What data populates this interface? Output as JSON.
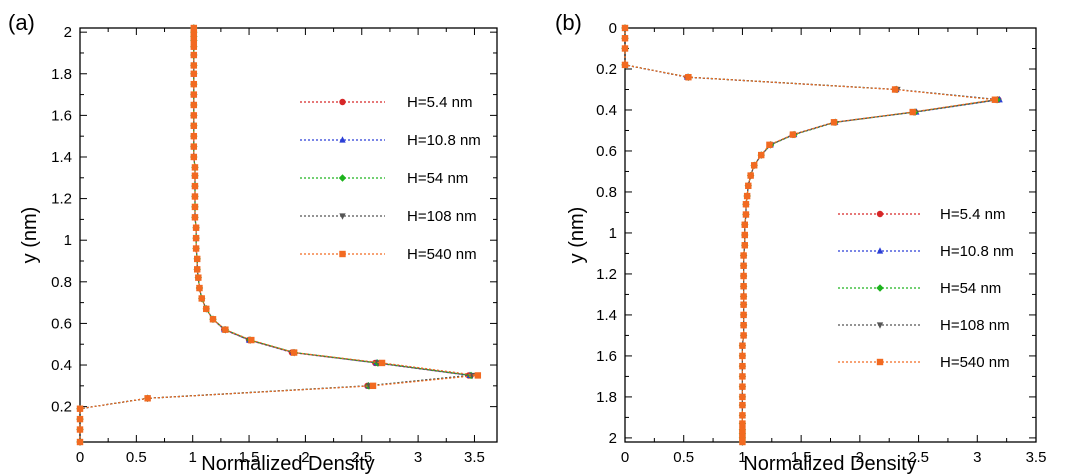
{
  "chart_data": [
    {
      "type": "line",
      "panel_label": "(a)",
      "xlabel": "Normalized Density",
      "ylabel": "y (nm)",
      "xlim": [
        0,
        3.7
      ],
      "ylim": [
        0.03,
        2.02
      ],
      "y_inverted": false,
      "xticks": [
        0,
        0.5,
        1,
        1.5,
        2,
        2.5,
        3,
        3.5
      ],
      "yticks": [
        0.2,
        0.4,
        0.6,
        0.8,
        1,
        1.2,
        1.4,
        1.6,
        1.8,
        2
      ],
      "grid": false,
      "legend_position": "right",
      "series": [
        {
          "name": "H=5.4 nm",
          "color": "#d62728",
          "marker": "circle",
          "x": [
            0,
            0,
            0,
            0,
            0.6,
            2.55,
            3.45,
            2.62,
            1.88,
            1.5,
            1.28,
            1.18,
            1.12,
            1.08,
            1.06,
            1.05,
            1.04,
            1.04,
            1.03,
            1.03,
            1.03,
            1.02,
            1.02,
            1.02,
            1.02,
            1.02,
            1.02,
            1.01,
            1.01,
            1.01,
            1.01,
            1.01,
            1.01,
            1.01,
            1.01,
            1.01,
            1.01,
            1.01,
            1.01,
            1.01,
            1.01,
            1.01,
            1.01
          ],
          "y": [
            0.03,
            0.09,
            0.14,
            0.19,
            0.24,
            0.3,
            0.35,
            0.41,
            0.46,
            0.52,
            0.57,
            0.62,
            0.67,
            0.72,
            0.77,
            0.82,
            0.86,
            0.91,
            0.96,
            1.01,
            1.06,
            1.11,
            1.16,
            1.21,
            1.26,
            1.31,
            1.35,
            1.4,
            1.45,
            1.5,
            1.55,
            1.6,
            1.65,
            1.7,
            1.75,
            1.8,
            1.84,
            1.89,
            1.93,
            1.96,
            1.98,
            2.0,
            2.02
          ]
        },
        {
          "name": "H=10.8 nm",
          "color": "#2b3fd6",
          "marker": "triangle",
          "x": [
            0,
            0,
            0,
            0,
            0.6,
            2.56,
            3.46,
            2.63,
            1.89,
            1.5,
            1.28,
            1.18,
            1.12,
            1.08,
            1.06,
            1.05,
            1.04,
            1.04,
            1.03,
            1.03,
            1.03,
            1.02,
            1.02,
            1.02,
            1.02,
            1.02,
            1.02,
            1.01,
            1.01,
            1.01,
            1.01,
            1.01,
            1.01,
            1.01,
            1.01,
            1.01,
            1.01,
            1.01,
            1.01,
            1.01,
            1.01,
            1.01,
            1.01
          ],
          "y": [
            0.03,
            0.09,
            0.14,
            0.19,
            0.24,
            0.3,
            0.35,
            0.41,
            0.46,
            0.52,
            0.57,
            0.62,
            0.67,
            0.72,
            0.77,
            0.82,
            0.86,
            0.91,
            0.96,
            1.01,
            1.06,
            1.11,
            1.16,
            1.21,
            1.26,
            1.31,
            1.35,
            1.4,
            1.45,
            1.5,
            1.55,
            1.6,
            1.65,
            1.7,
            1.75,
            1.8,
            1.84,
            1.89,
            1.93,
            1.96,
            1.98,
            2.0,
            2.02
          ]
        },
        {
          "name": "H=54 nm",
          "color": "#1db31d",
          "marker": "diamond",
          "x": [
            0,
            0,
            0,
            0,
            0.6,
            2.56,
            3.47,
            2.64,
            1.9,
            1.51,
            1.29,
            1.18,
            1.12,
            1.08,
            1.06,
            1.05,
            1.04,
            1.04,
            1.03,
            1.03,
            1.03,
            1.02,
            1.02,
            1.02,
            1.02,
            1.02,
            1.02,
            1.01,
            1.01,
            1.01,
            1.01,
            1.01,
            1.01,
            1.01,
            1.01,
            1.01,
            1.01,
            1.01,
            1.01,
            1.01,
            1.01,
            1.01,
            1.01
          ],
          "y": [
            0.03,
            0.09,
            0.14,
            0.19,
            0.24,
            0.3,
            0.35,
            0.41,
            0.46,
            0.52,
            0.57,
            0.62,
            0.67,
            0.72,
            0.77,
            0.82,
            0.86,
            0.91,
            0.96,
            1.01,
            1.06,
            1.11,
            1.16,
            1.21,
            1.26,
            1.31,
            1.35,
            1.4,
            1.45,
            1.5,
            1.55,
            1.6,
            1.65,
            1.7,
            1.75,
            1.8,
            1.84,
            1.89,
            1.93,
            1.96,
            1.98,
            2.0,
            2.02
          ]
        },
        {
          "name": "H=108 nm",
          "color": "#555555",
          "marker": "triangle-down",
          "x": [
            0,
            0,
            0,
            0,
            0.6,
            2.57,
            3.48,
            2.65,
            1.9,
            1.51,
            1.29,
            1.18,
            1.12,
            1.08,
            1.06,
            1.05,
            1.04,
            1.04,
            1.03,
            1.03,
            1.03,
            1.02,
            1.02,
            1.02,
            1.02,
            1.02,
            1.02,
            1.01,
            1.01,
            1.01,
            1.01,
            1.01,
            1.01,
            1.01,
            1.01,
            1.01,
            1.01,
            1.01,
            1.01,
            1.01,
            1.01,
            1.01,
            1.01
          ],
          "y": [
            0.03,
            0.09,
            0.14,
            0.19,
            0.24,
            0.3,
            0.35,
            0.41,
            0.46,
            0.52,
            0.57,
            0.62,
            0.67,
            0.72,
            0.77,
            0.82,
            0.86,
            0.91,
            0.96,
            1.01,
            1.06,
            1.11,
            1.16,
            1.21,
            1.26,
            1.31,
            1.35,
            1.4,
            1.45,
            1.5,
            1.55,
            1.6,
            1.65,
            1.7,
            1.75,
            1.8,
            1.84,
            1.89,
            1.93,
            1.96,
            1.98,
            2.0,
            2.02
          ]
        },
        {
          "name": "H=540 nm",
          "color": "#f26a21",
          "marker": "square",
          "x": [
            0,
            0,
            0,
            0,
            0.6,
            2.6,
            3.53,
            2.68,
            1.9,
            1.52,
            1.29,
            1.18,
            1.12,
            1.08,
            1.06,
            1.05,
            1.04,
            1.04,
            1.03,
            1.03,
            1.03,
            1.02,
            1.02,
            1.02,
            1.02,
            1.02,
            1.02,
            1.01,
            1.01,
            1.01,
            1.01,
            1.01,
            1.01,
            1.01,
            1.01,
            1.01,
            1.01,
            1.01,
            1.01,
            1.01,
            1.01,
            1.01,
            1.01
          ],
          "y": [
            0.03,
            0.09,
            0.14,
            0.19,
            0.24,
            0.3,
            0.35,
            0.41,
            0.46,
            0.52,
            0.57,
            0.62,
            0.67,
            0.72,
            0.77,
            0.82,
            0.86,
            0.91,
            0.96,
            1.01,
            1.06,
            1.11,
            1.16,
            1.21,
            1.26,
            1.31,
            1.35,
            1.4,
            1.45,
            1.5,
            1.55,
            1.6,
            1.65,
            1.7,
            1.75,
            1.8,
            1.84,
            1.89,
            1.93,
            1.96,
            1.98,
            2.0,
            2.02
          ]
        }
      ]
    },
    {
      "type": "line",
      "panel_label": "(b)",
      "xlabel": "Normalized Density",
      "ylabel": "y (nm)",
      "xlim": [
        0,
        3.5
      ],
      "ylim": [
        0,
        2.02
      ],
      "y_inverted": true,
      "xticks": [
        0,
        0.5,
        1,
        1.5,
        2,
        2.5,
        3,
        3.5
      ],
      "yticks": [
        0,
        0.2,
        0.4,
        0.6,
        0.8,
        1,
        1.2,
        1.4,
        1.6,
        1.8,
        2
      ],
      "grid": false,
      "legend_position": "right",
      "series": [
        {
          "name": "H=5.4 nm",
          "color": "#d62728",
          "marker": "circle",
          "x": [
            0,
            0,
            0,
            0,
            0.53,
            2.3,
            3.18,
            2.47,
            1.78,
            1.43,
            1.24,
            1.16,
            1.1,
            1.07,
            1.05,
            1.04,
            1.03,
            1.03,
            1.02,
            1.02,
            1.02,
            1.01,
            1.01,
            1.01,
            1.01,
            1.01,
            1.01,
            1.01,
            1.01,
            1.01,
            1.0,
            1.0,
            1.0,
            1.0,
            1.0,
            1.0,
            1.0,
            1.0,
            1.0,
            1.0,
            1.0,
            1.0,
            1.0
          ],
          "y": [
            0.0,
            0.05,
            0.1,
            0.18,
            0.24,
            0.3,
            0.35,
            0.41,
            0.46,
            0.52,
            0.57,
            0.62,
            0.67,
            0.72,
            0.77,
            0.82,
            0.86,
            0.91,
            0.96,
            1.01,
            1.06,
            1.11,
            1.16,
            1.21,
            1.26,
            1.31,
            1.35,
            1.4,
            1.45,
            1.5,
            1.55,
            1.6,
            1.65,
            1.7,
            1.75,
            1.8,
            1.84,
            1.89,
            1.93,
            1.96,
            1.98,
            2.0,
            2.02
          ]
        },
        {
          "name": "H=10.8 nm",
          "color": "#2b3fd6",
          "marker": "triangle",
          "x": [
            0,
            0,
            0,
            0,
            0.53,
            2.31,
            3.19,
            2.48,
            1.79,
            1.44,
            1.24,
            1.16,
            1.1,
            1.07,
            1.05,
            1.04,
            1.03,
            1.03,
            1.02,
            1.02,
            1.02,
            1.01,
            1.01,
            1.01,
            1.01,
            1.01,
            1.01,
            1.01,
            1.01,
            1.01,
            1.0,
            1.0,
            1.0,
            1.0,
            1.0,
            1.0,
            1.0,
            1.0,
            1.0,
            1.0,
            1.0,
            1.0,
            1.0
          ],
          "y": [
            0.0,
            0.05,
            0.1,
            0.18,
            0.24,
            0.3,
            0.35,
            0.41,
            0.46,
            0.52,
            0.57,
            0.62,
            0.67,
            0.72,
            0.77,
            0.82,
            0.86,
            0.91,
            0.96,
            1.01,
            1.06,
            1.11,
            1.16,
            1.21,
            1.26,
            1.31,
            1.35,
            1.4,
            1.45,
            1.5,
            1.55,
            1.6,
            1.65,
            1.7,
            1.75,
            1.8,
            1.84,
            1.89,
            1.93,
            1.96,
            1.98,
            2.0,
            2.02
          ]
        },
        {
          "name": "H=54 nm",
          "color": "#1db31d",
          "marker": "diamond",
          "x": [
            0,
            0,
            0,
            0,
            0.54,
            2.31,
            3.17,
            2.47,
            1.79,
            1.44,
            1.24,
            1.16,
            1.1,
            1.07,
            1.05,
            1.04,
            1.03,
            1.03,
            1.02,
            1.02,
            1.02,
            1.01,
            1.01,
            1.01,
            1.01,
            1.01,
            1.01,
            1.01,
            1.01,
            1.01,
            1.0,
            1.0,
            1.0,
            1.0,
            1.0,
            1.0,
            1.0,
            1.0,
            1.0,
            1.0,
            1.0,
            1.0,
            1.0
          ],
          "y": [
            0.0,
            0.05,
            0.1,
            0.18,
            0.24,
            0.3,
            0.35,
            0.41,
            0.46,
            0.52,
            0.57,
            0.62,
            0.67,
            0.72,
            0.77,
            0.82,
            0.86,
            0.91,
            0.96,
            1.01,
            1.06,
            1.11,
            1.16,
            1.21,
            1.26,
            1.31,
            1.35,
            1.4,
            1.45,
            1.5,
            1.55,
            1.6,
            1.65,
            1.7,
            1.75,
            1.8,
            1.84,
            1.89,
            1.93,
            1.96,
            1.98,
            2.0,
            2.02
          ]
        },
        {
          "name": "H=108 nm",
          "color": "#555555",
          "marker": "triangle-down",
          "x": [
            0,
            0,
            0,
            0,
            0.54,
            2.32,
            3.16,
            2.46,
            1.78,
            1.43,
            1.24,
            1.16,
            1.1,
            1.07,
            1.05,
            1.04,
            1.03,
            1.03,
            1.02,
            1.02,
            1.02,
            1.01,
            1.01,
            1.01,
            1.01,
            1.01,
            1.01,
            1.01,
            1.01,
            1.01,
            1.0,
            1.0,
            1.0,
            1.0,
            1.0,
            1.0,
            1.0,
            1.0,
            1.0,
            1.0,
            1.0,
            1.0,
            1.0
          ],
          "y": [
            0.0,
            0.05,
            0.1,
            0.18,
            0.24,
            0.3,
            0.35,
            0.41,
            0.46,
            0.52,
            0.57,
            0.62,
            0.67,
            0.72,
            0.77,
            0.82,
            0.86,
            0.91,
            0.96,
            1.01,
            1.06,
            1.11,
            1.16,
            1.21,
            1.26,
            1.31,
            1.35,
            1.4,
            1.45,
            1.5,
            1.55,
            1.6,
            1.65,
            1.7,
            1.75,
            1.8,
            1.84,
            1.89,
            1.93,
            1.96,
            1.98,
            2.0,
            2.02
          ]
        },
        {
          "name": "H=540 nm",
          "color": "#f26a21",
          "marker": "square",
          "x": [
            0,
            0,
            0,
            0,
            0.54,
            2.3,
            3.15,
            2.45,
            1.78,
            1.43,
            1.23,
            1.16,
            1.1,
            1.07,
            1.05,
            1.04,
            1.03,
            1.03,
            1.02,
            1.02,
            1.02,
            1.01,
            1.01,
            1.01,
            1.01,
            1.01,
            1.01,
            1.01,
            1.01,
            1.01,
            1.0,
            1.0,
            1.0,
            1.0,
            1.0,
            1.0,
            1.0,
            1.0,
            1.0,
            1.0,
            1.0,
            1.0,
            1.0
          ],
          "y": [
            0.0,
            0.05,
            0.1,
            0.18,
            0.24,
            0.3,
            0.35,
            0.41,
            0.46,
            0.52,
            0.57,
            0.62,
            0.67,
            0.72,
            0.77,
            0.82,
            0.86,
            0.91,
            0.96,
            1.01,
            1.06,
            1.11,
            1.16,
            1.21,
            1.26,
            1.31,
            1.35,
            1.4,
            1.45,
            1.5,
            1.55,
            1.6,
            1.65,
            1.7,
            1.75,
            1.8,
            1.84,
            1.89,
            1.93,
            1.96,
            1.98,
            2.0,
            2.02
          ]
        }
      ]
    }
  ]
}
